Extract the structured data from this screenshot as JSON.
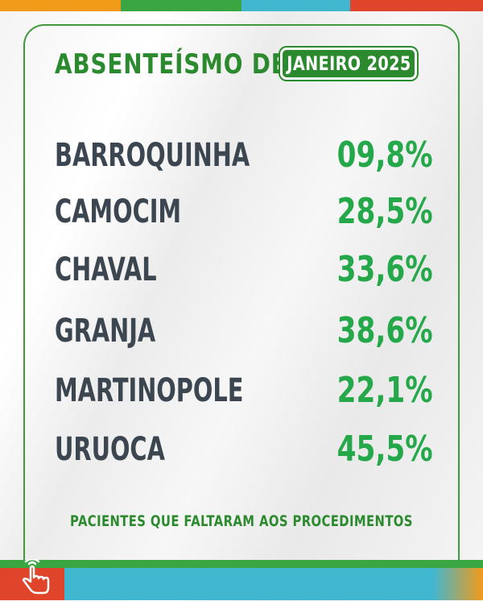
{
  "colors": {
    "accent_green": "#2c8a2e",
    "percent_green": "#24a84a",
    "city_text": "#3c4650",
    "strip_orange": "#f29a1a",
    "strip_green": "#3aa641",
    "strip_blue": "#41b6cf",
    "strip_red": "#e0452b"
  },
  "header": {
    "title": "ABSENTEÍSMO DE",
    "month_badge": "JANEIRO 2025"
  },
  "rows": [
    {
      "city": "BARROQUINHA",
      "percent": "09,8%"
    },
    {
      "city": "CAMOCIM",
      "percent": "28,5%"
    },
    {
      "city": "CHAVAL",
      "percent": "33,6%"
    },
    {
      "city": "GRANJA",
      "percent": "38,6%"
    },
    {
      "city": "MARTINOPOLE",
      "percent": "22,1%"
    },
    {
      "city": "URUOCA",
      "percent": "45,5%"
    }
  ],
  "footer": {
    "note": "PACIENTES QUE FALTARAM AOS PROCEDIMENTOS"
  },
  "icons": {
    "corner": "hand-pointer-icon"
  }
}
